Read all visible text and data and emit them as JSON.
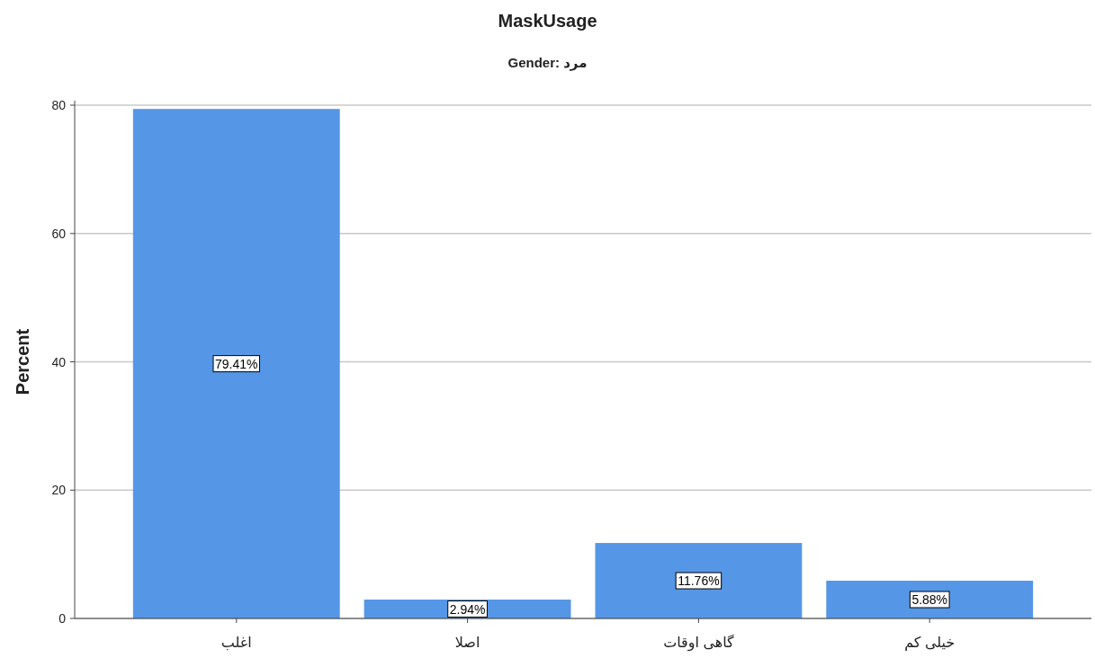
{
  "chart_data": {
    "type": "bar",
    "title": "MaskUsage",
    "subtitle": "Gender: مرد",
    "ylabel": "Percent",
    "categories": [
      "اغلب",
      "اصلا",
      "گاهی اوقات",
      "خیلی کم"
    ],
    "values": [
      79.41,
      2.94,
      11.76,
      5.88
    ],
    "value_labels": [
      "79.41%",
      "2.94%",
      "11.76%",
      "5.88%"
    ],
    "color": "#5596e6",
    "ylim": [
      0,
      80
    ],
    "yticks": [
      0,
      20,
      40,
      60,
      80
    ],
    "grid": "y"
  }
}
